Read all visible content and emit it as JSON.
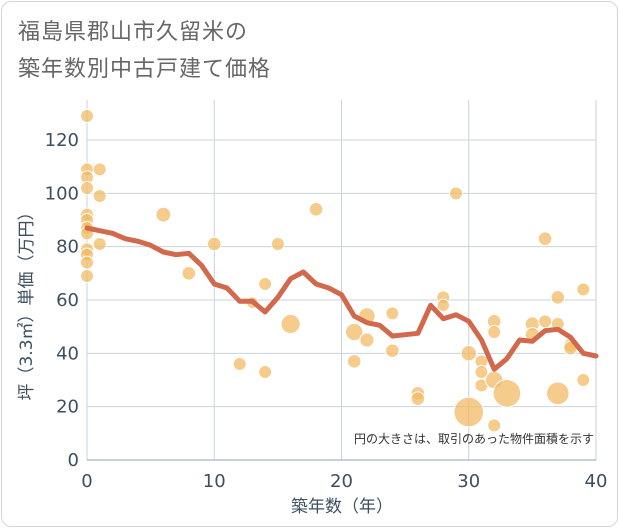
{
  "title_lines": [
    "福島県郡山市久留米の",
    "築年数別中古戸建て価格"
  ],
  "chart_data": {
    "type": "scatter",
    "xlabel": "築年数（年）",
    "ylabel": "坪（3.3㎡）単価（万円）",
    "xlim": [
      0,
      40
    ],
    "ylim": [
      0,
      135
    ],
    "xticks": [
      0,
      10,
      20,
      30,
      40
    ],
    "yticks": [
      0,
      20,
      40,
      60,
      80,
      100,
      120
    ],
    "grid": true,
    "note": "円の大きさは、取引のあった物件面積を示す",
    "colors": {
      "bubble": "#f3b95f",
      "trend": "#d2694c",
      "grid": "#c9d3dc",
      "text": "#3d4f5f"
    },
    "bubbles": [
      {
        "x": 0,
        "y": 129,
        "size": 1
      },
      {
        "x": 0,
        "y": 109,
        "size": 1
      },
      {
        "x": 0,
        "y": 106,
        "size": 1
      },
      {
        "x": 0,
        "y": 102,
        "size": 1
      },
      {
        "x": 0,
        "y": 92,
        "size": 1
      },
      {
        "x": 0,
        "y": 90,
        "size": 1
      },
      {
        "x": 0,
        "y": 87,
        "size": 1
      },
      {
        "x": 0,
        "y": 85,
        "size": 1
      },
      {
        "x": 0,
        "y": 79,
        "size": 1
      },
      {
        "x": 0,
        "y": 77,
        "size": 1
      },
      {
        "x": 0,
        "y": 74,
        "size": 1
      },
      {
        "x": 0,
        "y": 69,
        "size": 1
      },
      {
        "x": 1,
        "y": 109,
        "size": 1
      },
      {
        "x": 1,
        "y": 99,
        "size": 1
      },
      {
        "x": 1,
        "y": 81,
        "size": 1
      },
      {
        "x": 6,
        "y": 92,
        "size": 1.3
      },
      {
        "x": 8,
        "y": 70,
        "size": 1.1
      },
      {
        "x": 10,
        "y": 81,
        "size": 1.1
      },
      {
        "x": 12,
        "y": 36,
        "size": 1
      },
      {
        "x": 13,
        "y": 59,
        "size": 0.8
      },
      {
        "x": 14,
        "y": 66,
        "size": 1
      },
      {
        "x": 14,
        "y": 33,
        "size": 1
      },
      {
        "x": 15,
        "y": 81,
        "size": 1
      },
      {
        "x": 16,
        "y": 51,
        "size": 2.2
      },
      {
        "x": 18,
        "y": 94,
        "size": 1.1
      },
      {
        "x": 21,
        "y": 48,
        "size": 1.8
      },
      {
        "x": 21,
        "y": 37,
        "size": 1.1
      },
      {
        "x": 22,
        "y": 54,
        "size": 1.6
      },
      {
        "x": 22,
        "y": 45,
        "size": 1.2
      },
      {
        "x": 24,
        "y": 55,
        "size": 1
      },
      {
        "x": 24,
        "y": 41,
        "size": 1.1
      },
      {
        "x": 26,
        "y": 25,
        "size": 1.1
      },
      {
        "x": 26,
        "y": 23,
        "size": 1.1
      },
      {
        "x": 28,
        "y": 61,
        "size": 1
      },
      {
        "x": 28,
        "y": 58,
        "size": 0.9
      },
      {
        "x": 29,
        "y": 100,
        "size": 1
      },
      {
        "x": 30,
        "y": 40,
        "size": 1.4
      },
      {
        "x": 30,
        "y": 18,
        "size": 5.2
      },
      {
        "x": 31,
        "y": 37,
        "size": 1
      },
      {
        "x": 31,
        "y": 33,
        "size": 1
      },
      {
        "x": 31,
        "y": 28,
        "size": 1
      },
      {
        "x": 32,
        "y": 52,
        "size": 1.1
      },
      {
        "x": 32,
        "y": 48,
        "size": 1
      },
      {
        "x": 32,
        "y": 30,
        "size": 1.8
      },
      {
        "x": 32,
        "y": 13,
        "size": 1
      },
      {
        "x": 33,
        "y": 25,
        "size": 4.5
      },
      {
        "x": 35,
        "y": 51,
        "size": 1.2
      },
      {
        "x": 35,
        "y": 47,
        "size": 1.2
      },
      {
        "x": 36,
        "y": 83,
        "size": 1.1
      },
      {
        "x": 36,
        "y": 52,
        "size": 1
      },
      {
        "x": 37,
        "y": 61,
        "size": 1.1
      },
      {
        "x": 37,
        "y": 51,
        "size": 1
      },
      {
        "x": 37,
        "y": 25,
        "size": 3.0
      },
      {
        "x": 38,
        "y": 43,
        "size": 1.1
      },
      {
        "x": 38,
        "y": 42,
        "size": 1.1
      },
      {
        "x": 39,
        "y": 64,
        "size": 1
      },
      {
        "x": 39,
        "y": 30,
        "size": 1
      }
    ],
    "trend": {
      "x": [
        0,
        1,
        2,
        3,
        4,
        5,
        6,
        7,
        8,
        9,
        10,
        11,
        12,
        13,
        14,
        15,
        16,
        17,
        18,
        19,
        20,
        21,
        22,
        23,
        24,
        25,
        26,
        27,
        28,
        29,
        30,
        31,
        32,
        33,
        34,
        35,
        36,
        37,
        38,
        39,
        40
      ],
      "y": [
        87,
        86,
        85,
        83,
        82,
        80.5,
        78,
        77,
        77.5,
        73,
        66,
        64.5,
        59.5,
        59.5,
        55.5,
        61,
        68,
        70.5,
        66,
        64.5,
        62,
        54,
        51.5,
        50.5,
        46.5,
        47,
        47.5,
        58,
        53,
        54.5,
        52,
        45,
        34,
        38,
        45,
        44.5,
        48.5,
        49,
        46,
        40,
        39
      ]
    }
  }
}
